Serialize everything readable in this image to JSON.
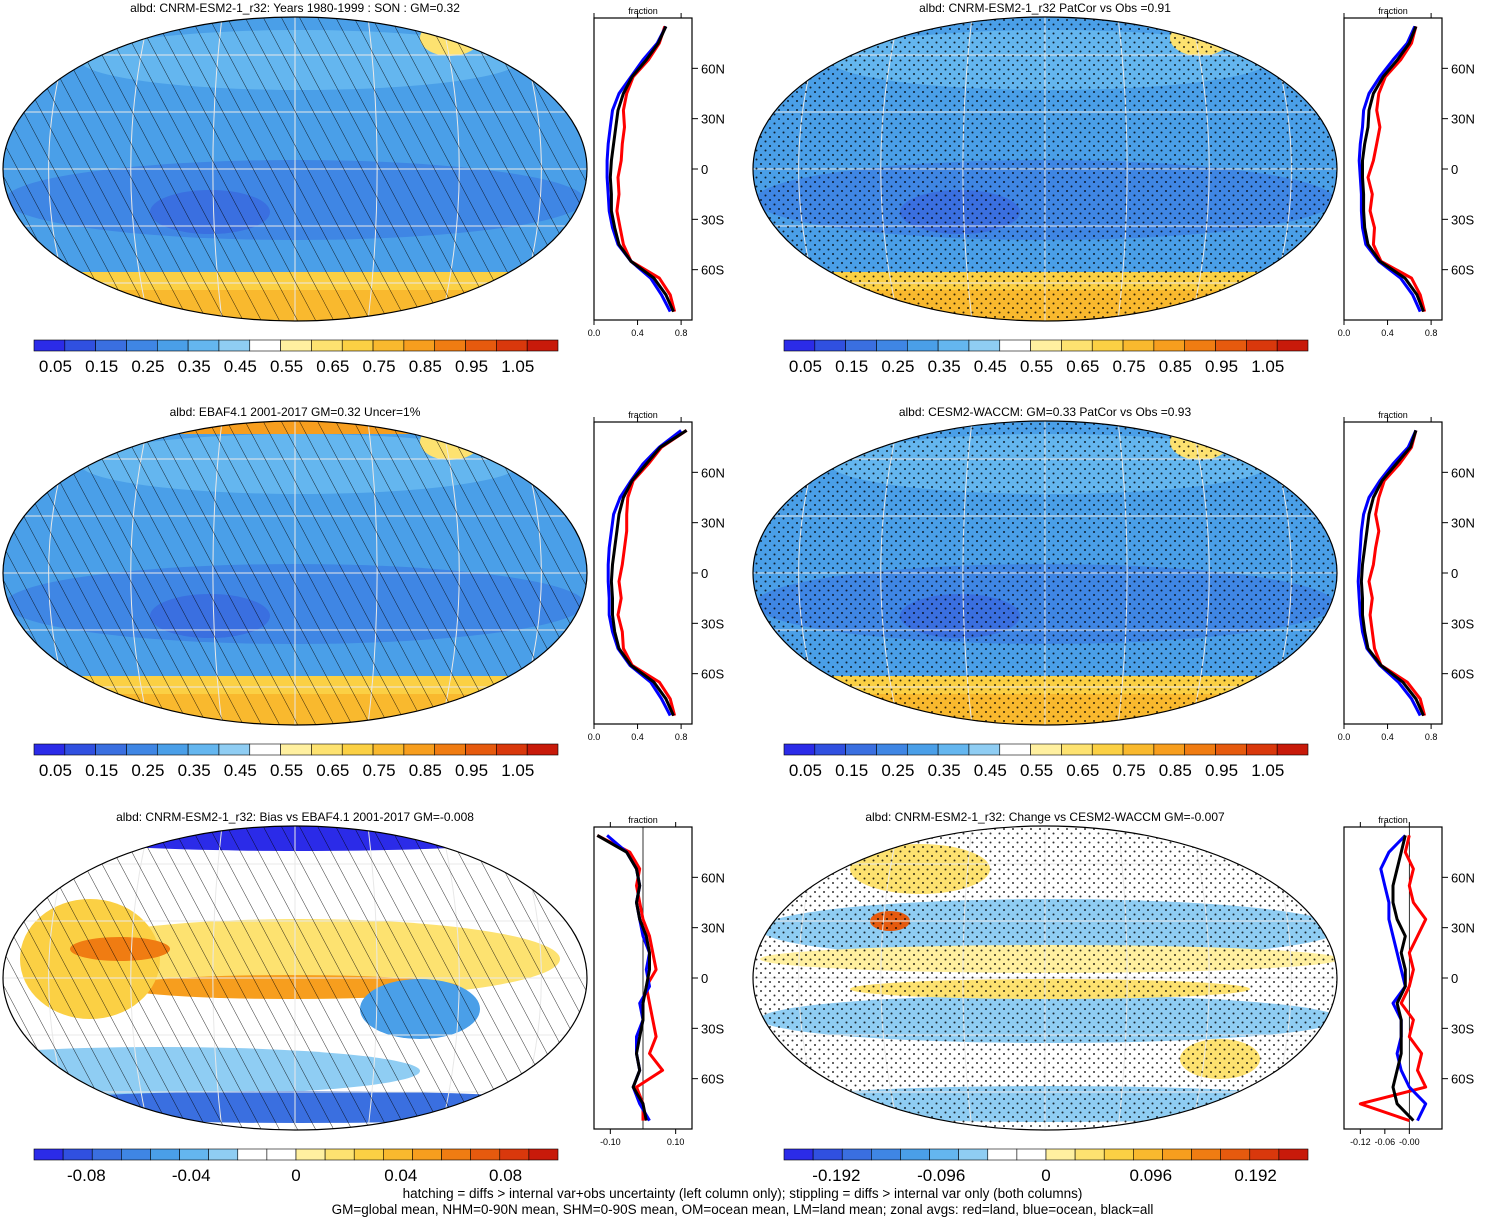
{
  "chart_data": [
    {
      "type": "heatmap",
      "title": "albd: CNRM-ESM2-1_r32: Years 1980-1999 : SON : GM=0.32",
      "overlay": "hatching",
      "lat_ticks": [
        "60N",
        "30N",
        "0",
        "30S",
        "60S"
      ],
      "colorbar": {
        "labels": [
          "0.05",
          "0.15",
          "0.25",
          "0.35",
          "0.45",
          "0.55",
          "0.65",
          "0.75",
          "0.85",
          "0.95",
          "1.05"
        ],
        "scheme": "abs"
      },
      "zonal": {
        "label": "fraction",
        "xlim": [
          0,
          0.9
        ],
        "xtick_values": [
          0,
          0.4,
          0.8
        ],
        "xtick_labels": [
          "0.0",
          "0.4",
          "0.8"
        ],
        "lat": [
          -85,
          -75,
          -65,
          -55,
          -45,
          -35,
          -25,
          -15,
          -5,
          5,
          15,
          25,
          35,
          45,
          55,
          65,
          75,
          85
        ],
        "series": [
          {
            "name": "land",
            "color": "#ff0000",
            "values": [
              0.74,
              0.7,
              0.6,
              0.34,
              0.27,
              0.24,
              0.21,
              0.23,
              0.22,
              0.25,
              0.26,
              0.28,
              0.27,
              0.3,
              0.36,
              0.5,
              0.6,
              0.65
            ]
          },
          {
            "name": "ocean",
            "color": "#0000ff",
            "values": [
              0.7,
              0.62,
              0.52,
              0.34,
              0.22,
              0.17,
              0.14,
              0.13,
              0.12,
              0.12,
              0.13,
              0.15,
              0.17,
              0.23,
              0.34,
              0.45,
              0.58,
              0.66
            ]
          },
          {
            "name": "all",
            "color": "#000000",
            "values": [
              0.73,
              0.66,
              0.55,
              0.34,
              0.23,
              0.19,
              0.16,
              0.16,
              0.15,
              0.16,
              0.18,
              0.2,
              0.22,
              0.27,
              0.35,
              0.48,
              0.59,
              0.66
            ]
          }
        ]
      }
    },
    {
      "type": "heatmap",
      "title": "albd: CNRM-ESM2-1_r32 PatCor vs Obs =0.91",
      "overlay": "stippling",
      "lat_ticks": [
        "60N",
        "30N",
        "0",
        "30S",
        "60S"
      ],
      "colorbar": {
        "labels": [
          "0.05",
          "0.15",
          "0.25",
          "0.35",
          "0.45",
          "0.55",
          "0.65",
          "0.75",
          "0.85",
          "0.95",
          "1.05"
        ],
        "scheme": "abs"
      },
      "zonal": {
        "label": "fraction",
        "xlim": [
          0,
          0.9
        ],
        "xtick_values": [
          0,
          0.4,
          0.8
        ],
        "xtick_labels": [
          "0.0",
          "0.4",
          "0.8"
        ],
        "lat": [
          -85,
          -75,
          -65,
          -55,
          -45,
          -35,
          -25,
          -15,
          -5,
          5,
          15,
          25,
          35,
          45,
          55,
          65,
          75,
          85
        ],
        "series": [
          {
            "name": "land",
            "color": "#ff0000",
            "values": [
              0.74,
              0.7,
              0.62,
              0.34,
              0.27,
              0.28,
              0.24,
              0.26,
              0.22,
              0.27,
              0.3,
              0.33,
              0.3,
              0.32,
              0.38,
              0.52,
              0.62,
              0.66
            ]
          },
          {
            "name": "ocean",
            "color": "#0000ff",
            "values": [
              0.7,
              0.63,
              0.52,
              0.32,
              0.2,
              0.17,
              0.16,
              0.16,
              0.15,
              0.14,
              0.15,
              0.17,
              0.18,
              0.23,
              0.33,
              0.45,
              0.58,
              0.65
            ]
          },
          {
            "name": "all",
            "color": "#000000",
            "values": [
              0.73,
              0.67,
              0.56,
              0.33,
              0.22,
              0.19,
              0.18,
              0.18,
              0.17,
              0.17,
              0.19,
              0.22,
              0.23,
              0.27,
              0.36,
              0.49,
              0.6,
              0.66
            ]
          }
        ]
      }
    },
    {
      "type": "heatmap",
      "title": "albd: EBAF4.1 2001-2017 GM=0.32 Uncer=1%",
      "overlay": "hatching",
      "lat_ticks": [
        "60N",
        "30N",
        "0",
        "30S",
        "60S"
      ],
      "colorbar": {
        "labels": [
          "0.05",
          "0.15",
          "0.25",
          "0.35",
          "0.45",
          "0.55",
          "0.65",
          "0.75",
          "0.85",
          "0.95",
          "1.05"
        ],
        "scheme": "abs"
      },
      "zonal": {
        "label": "fraction",
        "xlim": [
          0,
          0.9
        ],
        "xtick_values": [
          0,
          0.4,
          0.8
        ],
        "xtick_labels": [
          "0.0",
          "0.4",
          "0.8"
        ],
        "lat": [
          -85,
          -75,
          -65,
          -55,
          -45,
          -35,
          -25,
          -15,
          -5,
          5,
          15,
          25,
          35,
          45,
          55,
          65,
          75,
          85
        ],
        "series": [
          {
            "name": "land",
            "color": "#ff0000",
            "values": [
              0.74,
              0.7,
              0.6,
              0.35,
              0.27,
              0.26,
              0.22,
              0.25,
              0.23,
              0.26,
              0.28,
              0.3,
              0.3,
              0.31,
              0.36,
              0.5,
              0.62,
              0.85
            ]
          },
          {
            "name": "ocean",
            "color": "#0000ff",
            "values": [
              0.7,
              0.62,
              0.52,
              0.33,
              0.22,
              0.17,
              0.14,
              0.14,
              0.13,
              0.13,
              0.14,
              0.16,
              0.18,
              0.24,
              0.34,
              0.45,
              0.6,
              0.8
            ]
          },
          {
            "name": "all",
            "color": "#000000",
            "values": [
              0.73,
              0.66,
              0.55,
              0.34,
              0.23,
              0.19,
              0.17,
              0.17,
              0.16,
              0.17,
              0.19,
              0.21,
              0.23,
              0.27,
              0.35,
              0.48,
              0.61,
              0.85
            ]
          }
        ]
      }
    },
    {
      "type": "heatmap",
      "title": "albd: CESM2-WACCM: GM=0.33 PatCor vs Obs =0.93",
      "overlay": "stippling",
      "lat_ticks": [
        "60N",
        "30N",
        "0",
        "30S",
        "60S"
      ],
      "colorbar": {
        "labels": [
          "0.05",
          "0.15",
          "0.25",
          "0.35",
          "0.45",
          "0.55",
          "0.65",
          "0.75",
          "0.85",
          "0.95",
          "1.05"
        ],
        "scheme": "abs"
      },
      "zonal": {
        "label": "fraction",
        "xlim": [
          0,
          0.9
        ],
        "xtick_values": [
          0,
          0.4,
          0.8
        ],
        "xtick_labels": [
          "0.0",
          "0.4",
          "0.8"
        ],
        "lat": [
          -85,
          -75,
          -65,
          -55,
          -45,
          -35,
          -25,
          -15,
          -5,
          5,
          15,
          25,
          35,
          45,
          55,
          65,
          75,
          85
        ],
        "series": [
          {
            "name": "land",
            "color": "#ff0000",
            "values": [
              0.74,
              0.7,
              0.58,
              0.34,
              0.28,
              0.26,
              0.24,
              0.26,
              0.23,
              0.27,
              0.29,
              0.32,
              0.29,
              0.32,
              0.37,
              0.51,
              0.62,
              0.66
            ]
          },
          {
            "name": "ocean",
            "color": "#0000ff",
            "values": [
              0.7,
              0.62,
              0.5,
              0.33,
              0.21,
              0.17,
              0.15,
              0.14,
              0.13,
              0.14,
              0.15,
              0.16,
              0.18,
              0.23,
              0.33,
              0.45,
              0.59,
              0.66
            ]
          },
          {
            "name": "all",
            "color": "#000000",
            "values": [
              0.73,
              0.66,
              0.54,
              0.34,
              0.22,
              0.19,
              0.17,
              0.17,
              0.16,
              0.17,
              0.19,
              0.21,
              0.23,
              0.27,
              0.35,
              0.48,
              0.61,
              0.66
            ]
          }
        ]
      }
    },
    {
      "type": "heatmap",
      "title": "albd: CNRM-ESM2-1_r32: Bias vs EBAF4.1 2001-2017  GM=-0.008",
      "overlay": "hatching",
      "lat_ticks": [
        "60N",
        "30N",
        "0",
        "30S",
        "60S"
      ],
      "colorbar": {
        "labels": [
          "-0.08",
          "-0.04",
          "0",
          "0.04",
          "0.08"
        ],
        "scheme": "diff"
      },
      "zonal": {
        "label": "fraction",
        "xlim": [
          -0.15,
          0.15
        ],
        "xtick_values": [
          -0.1,
          0.1
        ],
        "xtick_labels": [
          "-0.10",
          "0.10"
        ],
        "lat": [
          -85,
          -75,
          -65,
          -55,
          -45,
          -35,
          -25,
          -15,
          -5,
          5,
          15,
          25,
          35,
          45,
          55,
          65,
          75,
          85
        ],
        "series": [
          {
            "name": "land",
            "color": "#ff0000",
            "values": [
              0.0,
              0.0,
              -0.02,
              0.06,
              0.02,
              0.04,
              0.03,
              0.02,
              0.01,
              0.04,
              0.03,
              0.02,
              0.0,
              -0.01,
              -0.02,
              -0.01,
              -0.04,
              -0.14
            ]
          },
          {
            "name": "ocean",
            "color": "#0000ff",
            "values": [
              0.02,
              -0.01,
              -0.03,
              -0.01,
              -0.02,
              -0.02,
              0.0,
              -0.01,
              0.02,
              0.01,
              0.02,
              0.0,
              -0.01,
              -0.02,
              -0.01,
              -0.02,
              -0.05,
              -0.11
            ]
          },
          {
            "name": "all",
            "color": "#000000",
            "values": [
              0.01,
              0.0,
              -0.03,
              -0.01,
              -0.02,
              -0.01,
              0.0,
              0.0,
              0.01,
              0.02,
              0.02,
              0.01,
              -0.01,
              -0.02,
              -0.01,
              -0.02,
              -0.05,
              -0.14
            ]
          }
        ]
      }
    },
    {
      "type": "heatmap",
      "title": "albd: CNRM-ESM2-1_r32: Change vs CESM2-WACCM GM=-0.007",
      "overlay": "stippling",
      "lat_ticks": [
        "60N",
        "30N",
        "0",
        "30S",
        "60S"
      ],
      "colorbar": {
        "labels": [
          "-0.192",
          "-0.096",
          "0",
          "0.096",
          "0.192"
        ],
        "scheme": "diff"
      },
      "zonal": {
        "label": "fraction",
        "xlim": [
          -0.16,
          0.08
        ],
        "xtick_values": [
          -0.12,
          -0.06,
          0.0
        ],
        "xtick_labels": [
          "-0.12",
          "-0.06",
          "-0.00"
        ],
        "lat": [
          -85,
          -75,
          -65,
          -55,
          -45,
          -35,
          -25,
          -15,
          -5,
          5,
          15,
          25,
          35,
          45,
          55,
          65,
          75,
          85
        ],
        "series": [
          {
            "name": "land",
            "color": "#ff0000",
            "values": [
              0.0,
              -0.12,
              0.04,
              0.02,
              0.03,
              0.0,
              0.01,
              -0.02,
              0.0,
              0.01,
              0.0,
              0.02,
              0.04,
              0.01,
              0.0,
              0.01,
              -0.01,
              0.0
            ]
          },
          {
            "name": "ocean",
            "color": "#0000ff",
            "values": [
              0.02,
              0.04,
              0.0,
              -0.02,
              -0.03,
              -0.02,
              -0.02,
              -0.04,
              -0.01,
              -0.02,
              -0.03,
              -0.04,
              -0.05,
              -0.05,
              -0.06,
              -0.07,
              -0.05,
              -0.01
            ]
          },
          {
            "name": "all",
            "color": "#000000",
            "values": [
              0.01,
              -0.03,
              -0.04,
              -0.03,
              -0.02,
              -0.02,
              -0.02,
              -0.03,
              -0.01,
              -0.01,
              -0.02,
              -0.01,
              -0.03,
              -0.04,
              -0.04,
              -0.03,
              -0.02,
              -0.01
            ]
          }
        ]
      }
    }
  ],
  "colors": {
    "abs": [
      "#2b2be8",
      "#3050e0",
      "#3a6fe0",
      "#3f86e4",
      "#4a9fe8",
      "#64b6ef",
      "#8fcdf3",
      "#ffffff",
      "#fff0a0",
      "#fde270",
      "#fbd044",
      "#f9b92e",
      "#f79e1e",
      "#f07c12",
      "#e65a0e",
      "#d9380c",
      "#c81a0a"
    ],
    "diff": [
      "#2b2be8",
      "#3050e0",
      "#3a6fe0",
      "#3f86e4",
      "#4a9fe8",
      "#64b6ef",
      "#8fcdf3",
      "#ffffff",
      "#ffffff",
      "#fff0a0",
      "#fde270",
      "#fbd044",
      "#f9b92e",
      "#f79e1e",
      "#f07c12",
      "#e65a0e",
      "#d9380c",
      "#c81a0a"
    ]
  },
  "footer": {
    "line1": "hatching = diffs > internal var+obs uncertainty (left column only); stippling = diffs > internal var only (both columns)",
    "line2": "GM=global mean, NHM=0-90N mean, SHM=0-90S mean, OM=ocean mean, LM=land mean; zonal avgs: red=land, blue=ocean, black=all"
  }
}
